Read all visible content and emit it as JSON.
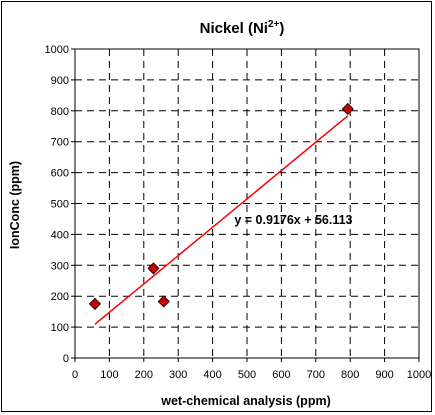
{
  "chart_data": {
    "type": "scatter",
    "title_main": "Nickel (Ni",
    "title_sup": "2+",
    "title_end": ")",
    "xlabel": "wet-chemical analysis (ppm)",
    "ylabel": "IonConc (ppm)",
    "xlim": [
      0,
      1000
    ],
    "ylim": [
      0,
      1000
    ],
    "x_ticks": [
      "0",
      "100",
      "200",
      "300",
      "400",
      "500",
      "600",
      "700",
      "800",
      "900",
      "1000"
    ],
    "y_ticks": [
      "0",
      "100",
      "200",
      "300",
      "400",
      "500",
      "600",
      "700",
      "800",
      "900",
      "1000"
    ],
    "grid": true,
    "points": [
      {
        "x": 58,
        "y": 175
      },
      {
        "x": 228,
        "y": 290
      },
      {
        "x": 258,
        "y": 183
      },
      {
        "x": 793,
        "y": 806
      }
    ],
    "trendline": {
      "slope": 0.9176,
      "intercept": 56.113,
      "x_range": [
        58,
        793
      ],
      "equation": "y = 0.9176x + 56.113"
    },
    "marker_color": "#cc0000",
    "line_color": "#ff0000"
  }
}
